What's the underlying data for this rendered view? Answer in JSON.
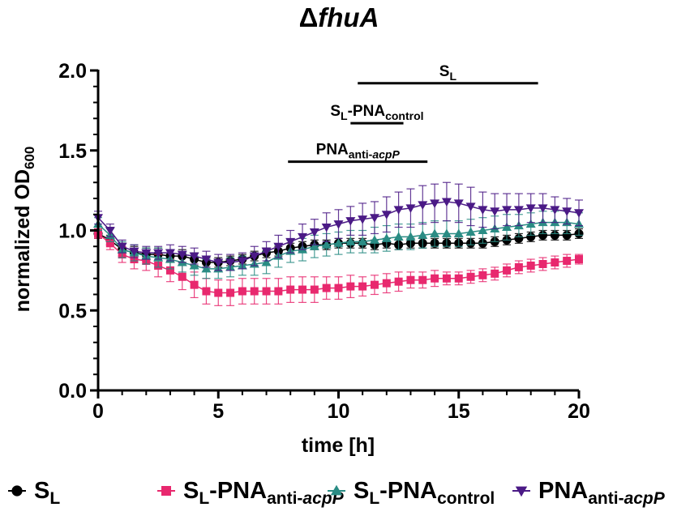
{
  "chart_data": {
    "type": "line",
    "title_prefix": "Δ",
    "title_main": "fhuA",
    "xlabel": "time [h]",
    "ylabel_main": "normalized OD",
    "ylabel_sub": "600",
    "xlim": [
      0,
      20
    ],
    "ylim": [
      0,
      2.0
    ],
    "xticks": [
      0,
      5,
      10,
      15,
      20
    ],
    "yticks": [
      0.0,
      0.5,
      1.0,
      1.5,
      2.0
    ],
    "xtick_labels": [
      "0",
      "5",
      "10",
      "15",
      "20"
    ],
    "ytick_labels": [
      "0.0",
      "0.5",
      "1.0",
      "1.5",
      "2.0"
    ],
    "annotations": [
      {
        "name": "S_L",
        "main": "S",
        "sub": "L",
        "sub_italic": "",
        "x_start": 10.8,
        "x_end": 18.3,
        "y": 1.92
      },
      {
        "name": "S_L-PNA_control",
        "main": "S",
        "sub": "L",
        "main2": "-PNA",
        "sub2": "control",
        "x_start": 10.5,
        "x_end": 12.7,
        "y": 1.67
      },
      {
        "name": "PNA_anti-acpP",
        "main": "PNA",
        "sub": "anti-",
        "sub_italic": "acpP",
        "x_start": 7.9,
        "x_end": 13.7,
        "y": 1.43
      }
    ],
    "series": [
      {
        "name": "SL",
        "legend_main": "S",
        "legend_sub": "L",
        "legend_main2": "",
        "legend_sub2": "",
        "legend_sub2_italic": "",
        "color": "#000000",
        "marker": "circle",
        "x": [
          0,
          0.5,
          1,
          1.5,
          2,
          2.5,
          3,
          3.5,
          4,
          4.5,
          5,
          5.5,
          6,
          6.5,
          7,
          7.5,
          8,
          8.5,
          9,
          9.5,
          10,
          10.5,
          11,
          11.5,
          12,
          12.5,
          13,
          13.5,
          14,
          14.5,
          15,
          15.5,
          16,
          16.5,
          17,
          17.5,
          18,
          18.5,
          19,
          19.5,
          20
        ],
        "y": [
          0.98,
          0.94,
          0.88,
          0.86,
          0.85,
          0.85,
          0.84,
          0.84,
          0.82,
          0.8,
          0.8,
          0.81,
          0.82,
          0.84,
          0.86,
          0.87,
          0.89,
          0.9,
          0.91,
          0.91,
          0.92,
          0.92,
          0.92,
          0.91,
          0.92,
          0.91,
          0.92,
          0.92,
          0.92,
          0.92,
          0.92,
          0.92,
          0.92,
          0.93,
          0.94,
          0.95,
          0.96,
          0.97,
          0.97,
          0.97,
          0.98
        ],
        "err": [
          0.03,
          0.03,
          0.04,
          0.04,
          0.04,
          0.04,
          0.04,
          0.04,
          0.04,
          0.03,
          0.03,
          0.03,
          0.03,
          0.03,
          0.03,
          0.03,
          0.03,
          0.03,
          0.03,
          0.03,
          0.03,
          0.03,
          0.03,
          0.03,
          0.03,
          0.03,
          0.03,
          0.03,
          0.03,
          0.03,
          0.03,
          0.03,
          0.03,
          0.03,
          0.03,
          0.03,
          0.03,
          0.03,
          0.03,
          0.03,
          0.03
        ]
      },
      {
        "name": "SL-PNAanti-acpP",
        "legend_main": "S",
        "legend_sub": "L",
        "legend_main2": "-PNA",
        "legend_sub2": "anti-",
        "legend_sub2_italic": "acpP",
        "color": "#e8286e",
        "marker": "square",
        "x": [
          0,
          0.5,
          1,
          1.5,
          2,
          2.5,
          3,
          3.5,
          4,
          4.5,
          5,
          5.5,
          6,
          6.5,
          7,
          7.5,
          8,
          8.5,
          9,
          9.5,
          10,
          10.5,
          11,
          11.5,
          12,
          12.5,
          13,
          13.5,
          14,
          14.5,
          15,
          15.5,
          16,
          16.5,
          17,
          17.5,
          18,
          18.5,
          19,
          19.5,
          20
        ],
        "y": [
          0.98,
          0.92,
          0.85,
          0.82,
          0.81,
          0.78,
          0.75,
          0.71,
          0.66,
          0.62,
          0.61,
          0.61,
          0.62,
          0.62,
          0.62,
          0.62,
          0.63,
          0.63,
          0.63,
          0.64,
          0.64,
          0.65,
          0.65,
          0.66,
          0.67,
          0.68,
          0.69,
          0.69,
          0.7,
          0.7,
          0.7,
          0.71,
          0.72,
          0.73,
          0.75,
          0.77,
          0.78,
          0.79,
          0.8,
          0.81,
          0.82
        ],
        "err": [
          0.03,
          0.04,
          0.05,
          0.06,
          0.06,
          0.07,
          0.07,
          0.08,
          0.08,
          0.08,
          0.08,
          0.08,
          0.08,
          0.08,
          0.08,
          0.08,
          0.08,
          0.08,
          0.08,
          0.07,
          0.07,
          0.07,
          0.06,
          0.06,
          0.06,
          0.06,
          0.05,
          0.05,
          0.05,
          0.04,
          0.04,
          0.04,
          0.04,
          0.04,
          0.04,
          0.04,
          0.04,
          0.04,
          0.04,
          0.04,
          0.03
        ]
      },
      {
        "name": "SL-PNAcontrol",
        "legend_main": "S",
        "legend_sub": "L",
        "legend_main2": "-PNA",
        "legend_sub2": "control",
        "legend_sub2_italic": "",
        "color": "#2a8c84",
        "marker": "triangle-up",
        "x": [
          0,
          0.5,
          1,
          1.5,
          2,
          2.5,
          3,
          3.5,
          4,
          4.5,
          5,
          5.5,
          6,
          6.5,
          7,
          7.5,
          8,
          8.5,
          9,
          9.5,
          10,
          10.5,
          11,
          11.5,
          12,
          12.5,
          13,
          13.5,
          14,
          14.5,
          15,
          15.5,
          16,
          16.5,
          17,
          17.5,
          18,
          18.5,
          19,
          19.5,
          20
        ],
        "y": [
          1.04,
          0.97,
          0.88,
          0.86,
          0.84,
          0.83,
          0.82,
          0.8,
          0.78,
          0.76,
          0.76,
          0.77,
          0.78,
          0.79,
          0.8,
          0.84,
          0.87,
          0.88,
          0.9,
          0.91,
          0.92,
          0.93,
          0.93,
          0.94,
          0.95,
          0.96,
          0.96,
          0.97,
          0.98,
          0.98,
          0.98,
          0.99,
          1.0,
          1.01,
          1.02,
          1.03,
          1.04,
          1.05,
          1.05,
          1.05,
          1.04
        ],
        "err": [
          0.04,
          0.04,
          0.05,
          0.05,
          0.05,
          0.06,
          0.06,
          0.06,
          0.06,
          0.06,
          0.06,
          0.06,
          0.06,
          0.07,
          0.07,
          0.07,
          0.07,
          0.07,
          0.07,
          0.07,
          0.07,
          0.07,
          0.07,
          0.08,
          0.08,
          0.08,
          0.08,
          0.08,
          0.08,
          0.08,
          0.08,
          0.08,
          0.08,
          0.08,
          0.08,
          0.07,
          0.07,
          0.07,
          0.07,
          0.07,
          0.07
        ]
      },
      {
        "name": "PNAanti-acpP",
        "legend_main": "PNA",
        "legend_sub": "",
        "legend_main2": "",
        "legend_sub2": "anti-",
        "legend_sub2_italic": "acpP",
        "color": "#4b1a86",
        "marker": "triangle-down",
        "x": [
          0,
          0.5,
          1,
          1.5,
          2,
          2.5,
          3,
          3.5,
          4,
          4.5,
          5,
          5.5,
          6,
          6.5,
          7,
          7.5,
          8,
          8.5,
          9,
          9.5,
          10,
          10.5,
          11,
          11.5,
          12,
          12.5,
          13,
          13.5,
          14,
          14.5,
          15,
          15.5,
          16,
          16.5,
          17,
          17.5,
          18,
          18.5,
          19,
          19.5,
          20
        ],
        "y": [
          1.08,
          1.0,
          0.9,
          0.87,
          0.86,
          0.86,
          0.86,
          0.85,
          0.84,
          0.82,
          0.8,
          0.8,
          0.81,
          0.84,
          0.87,
          0.9,
          0.93,
          0.96,
          0.99,
          1.02,
          1.04,
          1.06,
          1.07,
          1.08,
          1.1,
          1.13,
          1.14,
          1.16,
          1.17,
          1.18,
          1.17,
          1.15,
          1.13,
          1.12,
          1.13,
          1.13,
          1.14,
          1.14,
          1.13,
          1.12,
          1.11
        ],
        "err": [
          0.04,
          0.04,
          0.04,
          0.04,
          0.04,
          0.04,
          0.05,
          0.05,
          0.05,
          0.05,
          0.05,
          0.05,
          0.05,
          0.06,
          0.06,
          0.07,
          0.07,
          0.08,
          0.08,
          0.09,
          0.09,
          0.09,
          0.1,
          0.1,
          0.11,
          0.11,
          0.12,
          0.12,
          0.12,
          0.12,
          0.12,
          0.12,
          0.11,
          0.11,
          0.1,
          0.1,
          0.09,
          0.09,
          0.08,
          0.08,
          0.08
        ]
      }
    ]
  }
}
